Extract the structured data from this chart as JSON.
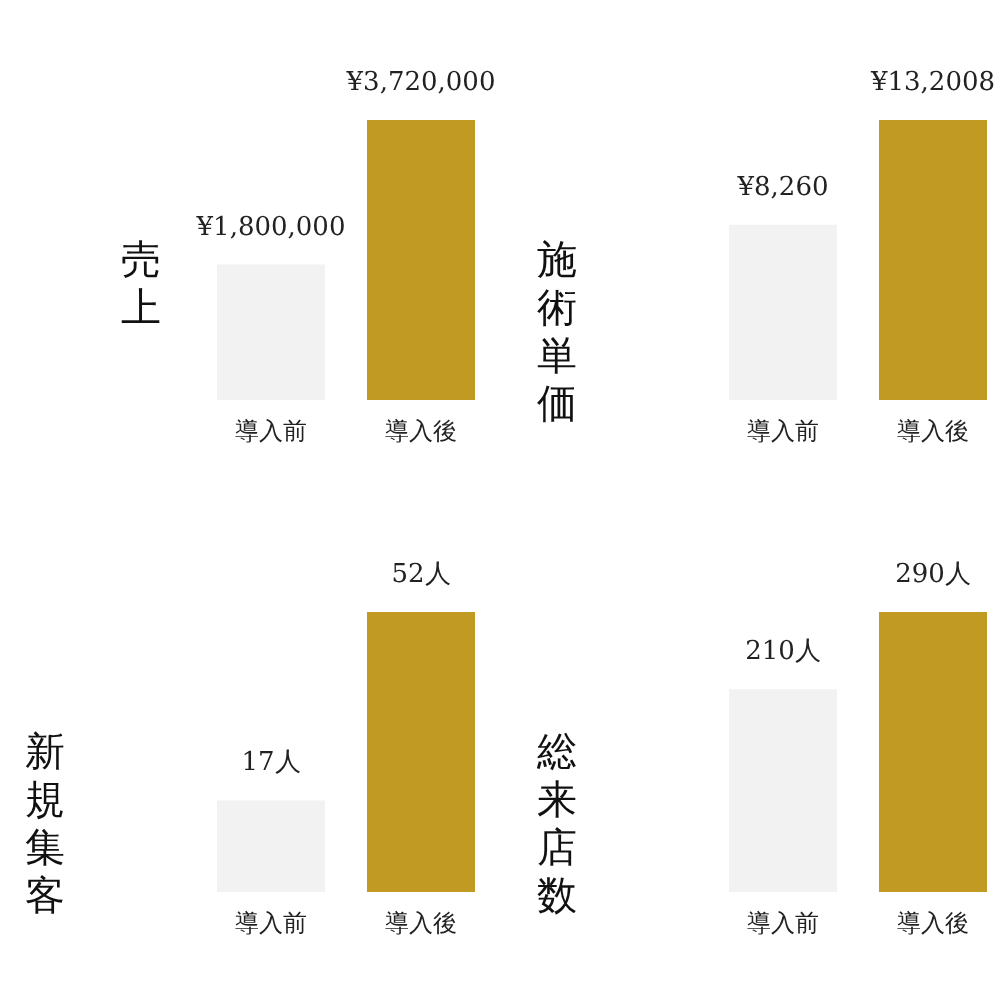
{
  "chart_data": [
    {
      "type": "bar",
      "ylabel": "売上",
      "categories": [
        "導入前",
        "導入後"
      ],
      "values": [
        1800000,
        3720000
      ],
      "colors": [
        "#f2f2f2",
        "#c09a22"
      ],
      "value_labels": [
        "¥1,800,000",
        "¥3,720,000"
      ],
      "tick_labels": "x"
    },
    {
      "type": "bar",
      "ylabel": "施術単価",
      "categories": [
        "導入前",
        "導入後"
      ],
      "values": [
        8260,
        13200
      ],
      "colors": [
        "#f2f2f2",
        "#c09a22"
      ],
      "value_labels": [
        "¥8,260",
        "¥13,2008"
      ],
      "tick_labels": "x"
    },
    {
      "type": "bar",
      "ylabel": "新規集客",
      "categories": [
        "導入前",
        "導入後"
      ],
      "values": [
        17,
        52
      ],
      "colors": [
        "#f2f2f2",
        "#c09a22"
      ],
      "value_labels": [
        "17人",
        "52人"
      ],
      "tick_labels": "x"
    },
    {
      "type": "bar",
      "ylabel": "総来店数",
      "categories": [
        "導入前",
        "導入後"
      ],
      "values": [
        210,
        290
      ],
      "colors": [
        "#f2f2f2",
        "#c09a22"
      ],
      "value_labels": [
        "210人",
        "290人"
      ],
      "tick_labels": "x"
    }
  ]
}
